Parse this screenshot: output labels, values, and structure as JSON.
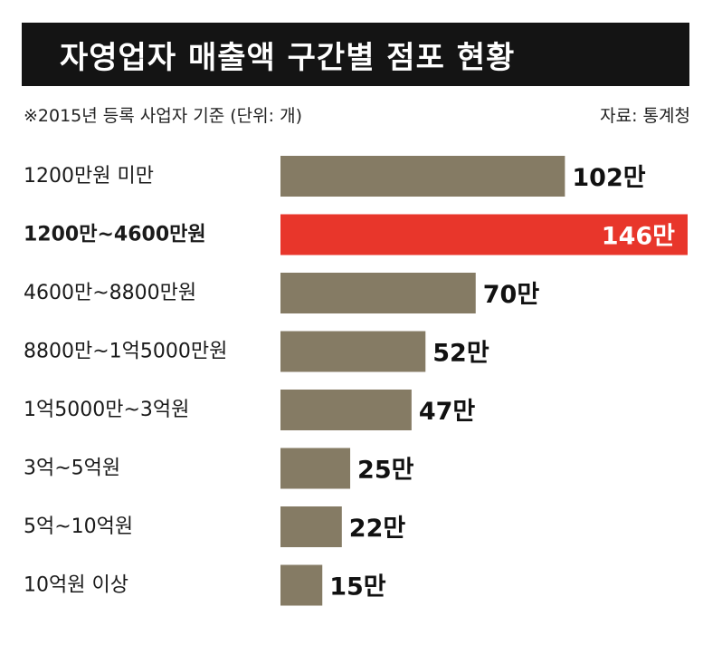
{
  "header": {
    "title": "자영업자 매출액 구간별 점포 현황",
    "note": "※2015년 등록 사업자 기준 (단위: 개)",
    "source": "자료: 통계청"
  },
  "colors": {
    "bar": "#857b64",
    "highlight": "#e8362b",
    "title_bg": "#141414"
  },
  "chart_data": {
    "type": "bar",
    "orientation": "horizontal",
    "categories": [
      "1200만원 미만",
      "1200만~4600만원",
      "4600만~8800만원",
      "8800만~1억5000만원",
      "1억5000만~3억원",
      "3억~5억원",
      "5억~10억원",
      "10억원 이상"
    ],
    "values": [
      102,
      146,
      70,
      52,
      47,
      25,
      22,
      15
    ],
    "value_labels": [
      "102만",
      "146만",
      "70만",
      "52만",
      "47만",
      "25만",
      "22만",
      "15만"
    ],
    "highlight_index": 1,
    "unit": "만"
  }
}
